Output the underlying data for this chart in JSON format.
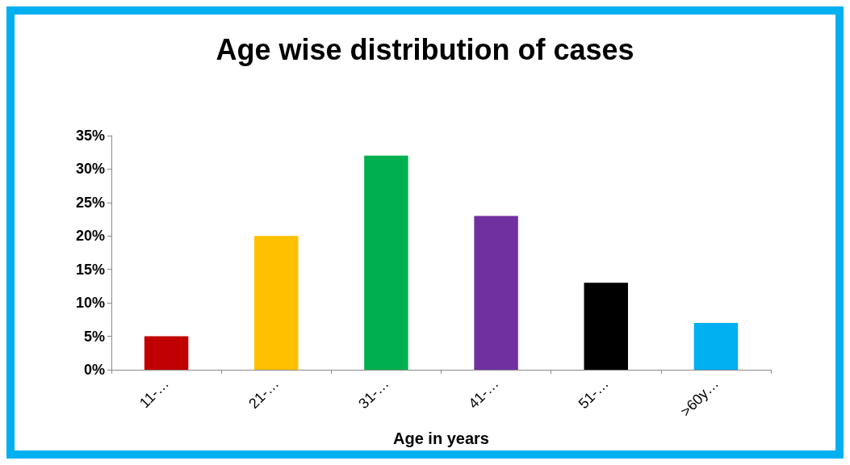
{
  "chart_data": {
    "type": "bar",
    "title": "Age wise distribution of cases",
    "xlabel": "Age in years",
    "categories": [
      "11-…",
      "21-…",
      "31-…",
      "41-…",
      "51-…",
      ">60y…"
    ],
    "values": [
      5,
      20,
      32,
      23,
      13,
      7
    ],
    "colors": [
      "#c00000",
      "#ffc000",
      "#00b050",
      "#7030a0",
      "#000000",
      "#00b0f0"
    ],
    "ylim": [
      0,
      35
    ],
    "yticks": [
      {
        "value": 0,
        "label": "0%"
      },
      {
        "value": 5,
        "label": "5%"
      },
      {
        "value": 10,
        "label": "10%"
      },
      {
        "value": 15,
        "label": "15%"
      },
      {
        "value": 20,
        "label": "20%"
      },
      {
        "value": 25,
        "label": "25%"
      },
      {
        "value": 30,
        "label": "30%"
      },
      {
        "value": 35,
        "label": "35%"
      }
    ],
    "grid": false
  }
}
